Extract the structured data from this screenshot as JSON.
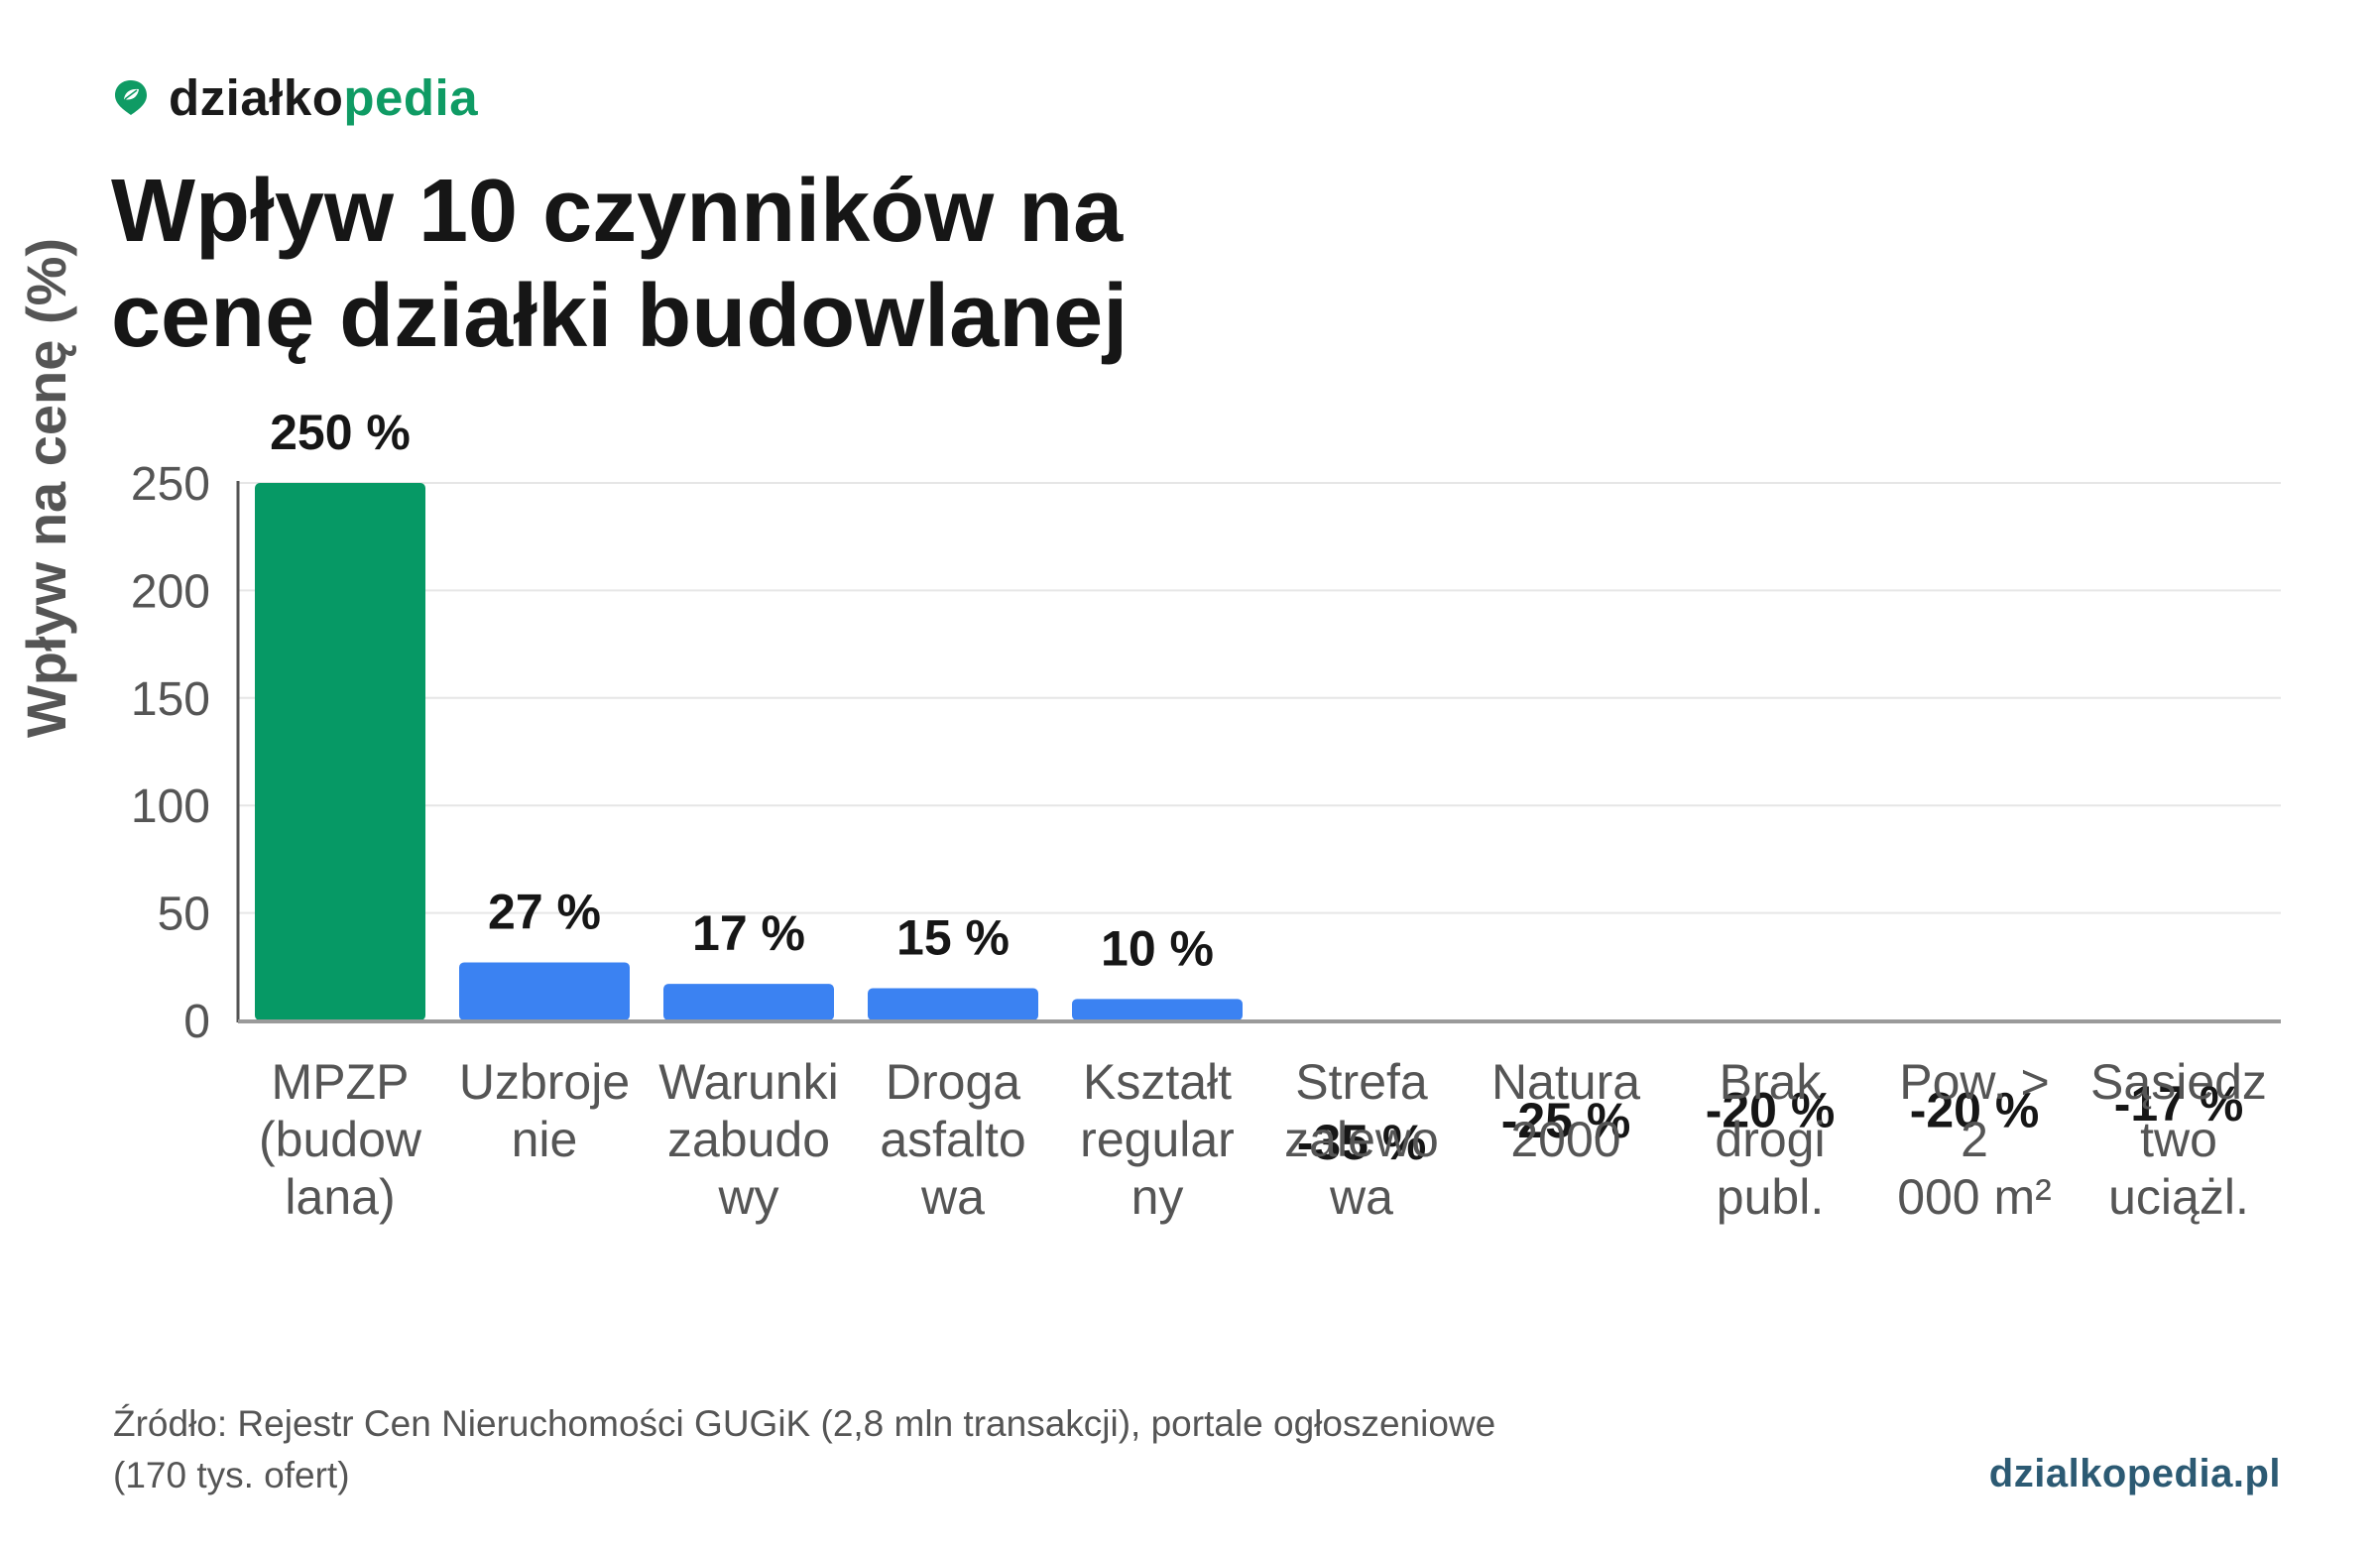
{
  "brand": {
    "name_main": "działko",
    "name_accent": "pedia",
    "accent_color": "#0f9b64",
    "icon": "map-pin-leaf-icon"
  },
  "title_lines": [
    "Wpływ 10 czynników na",
    "cenę działki budowlanej"
  ],
  "chart_data": {
    "type": "bar",
    "title": "Wpływ 10 czynników na cenę działki budowlanej",
    "xlabel": "",
    "ylabel": "Wpływ na cenę (%)",
    "ylim": [
      0,
      250
    ],
    "yticks": [
      0,
      50,
      100,
      150,
      200,
      250
    ],
    "grid": true,
    "categories": [
      [
        "MPZP",
        "(budow",
        "lana)"
      ],
      [
        "Uzbroje",
        "nie"
      ],
      [
        "Warunki",
        "zabudo",
        "wy"
      ],
      [
        "Droga",
        "asfalto",
        "wa"
      ],
      [
        "Kształt",
        "regular",
        "ny"
      ],
      [
        "Strefa",
        "zalewo",
        "wa"
      ],
      [
        "Natura",
        "2000"
      ],
      [
        "Brak",
        "drogi",
        "publ."
      ],
      [
        "Pow. >",
        "2",
        "000 m²"
      ],
      [
        "Sąsiedz",
        "two",
        "uciążl."
      ]
    ],
    "values": [
      250,
      27,
      17,
      15,
      10,
      -35,
      -25,
      -20,
      -20,
      -17
    ],
    "value_labels": [
      "250 %",
      "27 %",
      "17 %",
      "15 %",
      "10 %",
      "-35 %",
      "-25 %",
      "-20 %",
      "-20 %",
      "-17 %"
    ],
    "colors": [
      "#069965",
      "#3b82f2",
      "#3b82f2",
      "#3b82f2",
      "#3b82f2",
      "#3b82f2",
      "#3b82f2",
      "#3b82f2",
      "#3b82f2",
      "#3b82f2"
    ]
  },
  "source_lines": [
    "Źródło: Rejestr Cen Nieruchomości GUGiK (2,8 mln transakcji), portale ogłoszeniowe",
    "(170 tys. ofert)"
  ],
  "site": "dzialkopedia.pl"
}
